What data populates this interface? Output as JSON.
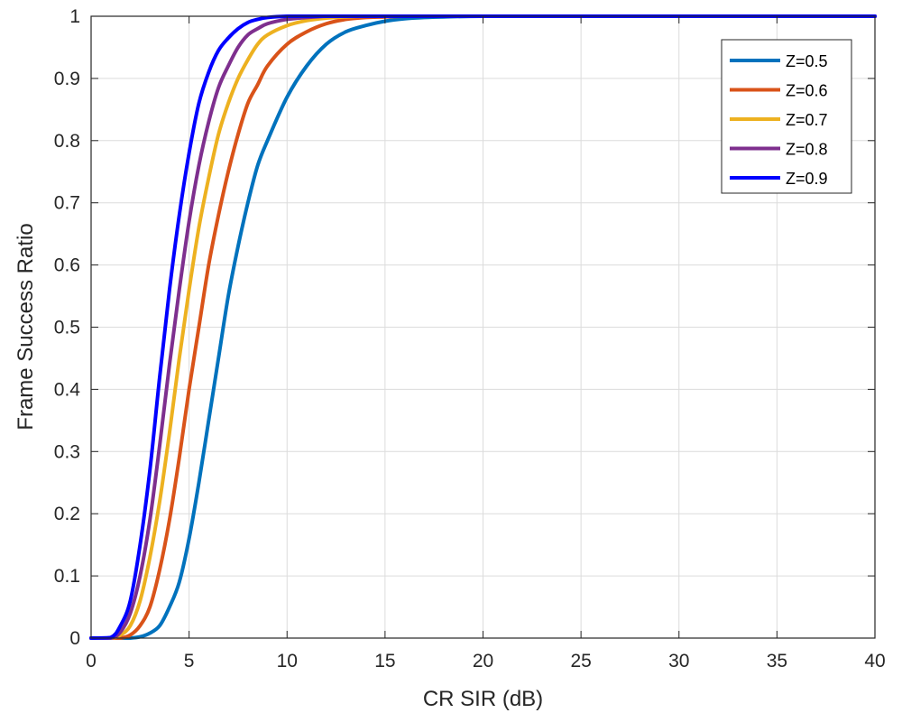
{
  "chart_data": {
    "type": "line",
    "title": "",
    "xlabel": "CR SIR (dB)",
    "ylabel": "Frame Success Ratio",
    "xlim": [
      0,
      40
    ],
    "ylim": [
      0,
      1
    ],
    "xticks": [
      0,
      5,
      10,
      15,
      20,
      25,
      30,
      35,
      40
    ],
    "yticks": [
      0,
      0.1,
      0.2,
      0.3,
      0.4,
      0.5,
      0.6,
      0.7,
      0.8,
      0.9,
      1
    ],
    "xtick_labels": [
      "0",
      "5",
      "10",
      "15",
      "20",
      "25",
      "30",
      "35",
      "40"
    ],
    "ytick_labels": [
      "0",
      "0.1",
      "0.2",
      "0.3",
      "0.4",
      "0.5",
      "0.6",
      "0.7",
      "0.8",
      "0.9",
      "1"
    ],
    "grid": true,
    "legend_position": "top-right",
    "x": [
      0,
      1,
      1.5,
      2,
      2.5,
      3,
      3.5,
      4,
      4.5,
      5,
      5.5,
      6,
      6.5,
      7,
      7.5,
      8,
      8.5,
      9,
      10,
      11,
      12,
      13,
      14,
      15,
      16,
      17,
      18,
      20,
      25,
      30,
      40
    ],
    "series": [
      {
        "name": "Z=0.5",
        "color": "#0072BD",
        "values": [
          0,
          0,
          0,
          0,
          0.002,
          0.008,
          0.02,
          0.05,
          0.09,
          0.16,
          0.25,
          0.35,
          0.45,
          0.55,
          0.63,
          0.7,
          0.76,
          0.8,
          0.87,
          0.92,
          0.955,
          0.975,
          0.985,
          0.992,
          0.996,
          0.998,
          0.999,
          1,
          1,
          1,
          1
        ]
      },
      {
        "name": "Z=0.6",
        "color": "#D95319",
        "values": [
          0,
          0,
          0,
          0.005,
          0.02,
          0.05,
          0.11,
          0.19,
          0.29,
          0.4,
          0.5,
          0.6,
          0.68,
          0.75,
          0.81,
          0.86,
          0.89,
          0.92,
          0.955,
          0.975,
          0.988,
          0.995,
          0.998,
          0.999,
          1,
          1,
          1,
          1,
          1,
          1,
          1
        ]
      },
      {
        "name": "Z=0.7",
        "color": "#EDB120",
        "values": [
          0,
          0,
          0.005,
          0.02,
          0.06,
          0.13,
          0.22,
          0.33,
          0.45,
          0.56,
          0.66,
          0.74,
          0.81,
          0.86,
          0.9,
          0.93,
          0.955,
          0.97,
          0.985,
          0.993,
          0.997,
          0.999,
          1,
          1,
          1,
          1,
          1,
          1,
          1,
          1,
          1
        ]
      },
      {
        "name": "Z=0.8",
        "color": "#7E2F8E",
        "values": [
          0,
          0,
          0.01,
          0.04,
          0.1,
          0.19,
          0.31,
          0.44,
          0.56,
          0.67,
          0.76,
          0.83,
          0.885,
          0.92,
          0.95,
          0.97,
          0.98,
          0.988,
          0.995,
          0.998,
          1,
          1,
          1,
          1,
          1,
          1,
          1,
          1,
          1,
          1,
          1
        ]
      },
      {
        "name": "Z=0.9",
        "color": "#0000FF",
        "values": [
          0,
          0.001,
          0.02,
          0.06,
          0.15,
          0.27,
          0.42,
          0.56,
          0.68,
          0.78,
          0.86,
          0.91,
          0.945,
          0.965,
          0.98,
          0.99,
          0.995,
          0.998,
          1,
          1,
          1,
          1,
          1,
          1,
          1,
          1,
          1,
          1,
          1,
          1,
          1
        ]
      }
    ]
  }
}
